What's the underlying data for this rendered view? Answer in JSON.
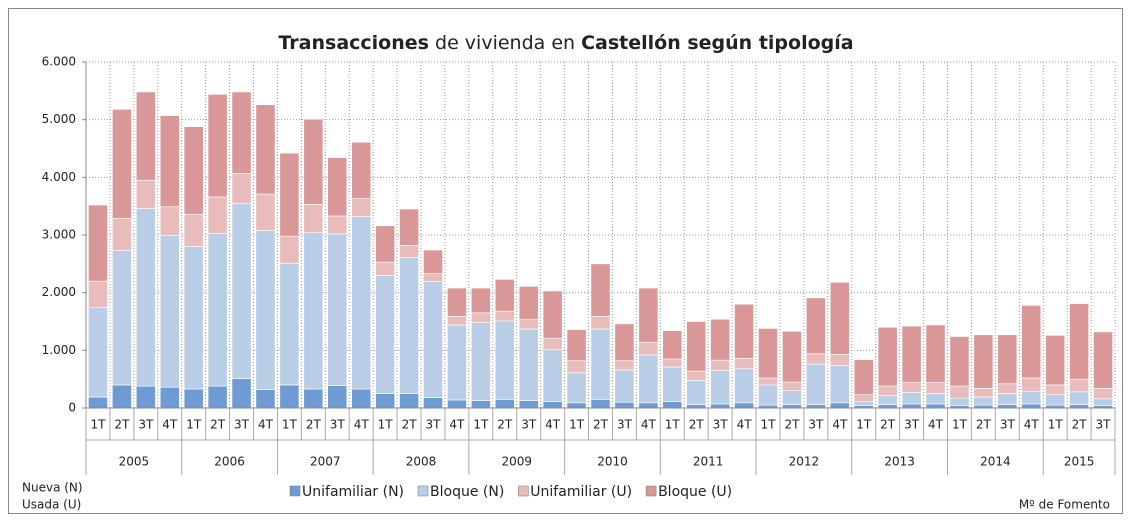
{
  "chart_data": {
    "type": "stacked-bar",
    "title_parts": [
      {
        "text": "Transacciones",
        "bold": true
      },
      {
        "text": " de vivienda en ",
        "bold": false
      },
      {
        "text": "Castellón  según tipología",
        "bold": true
      }
    ],
    "categories": [
      "1T",
      "2T",
      "3T",
      "4T",
      "1T",
      "2T",
      "3T",
      "4T",
      "1T",
      "2T",
      "3T",
      "4T",
      "1T",
      "2T",
      "3T",
      "4T",
      "1T",
      "2T",
      "3T",
      "4T",
      "1T",
      "2T",
      "3T",
      "4T",
      "1T",
      "2T",
      "3T",
      "4T",
      "1T",
      "2T",
      "3T",
      "4T",
      "1T",
      "2T",
      "3T",
      "4T",
      "1T",
      "2T",
      "3T",
      "4T",
      "1T",
      "2T",
      "3T"
    ],
    "year_groups": [
      {
        "label": "2005",
        "span": 4
      },
      {
        "label": "2006",
        "span": 4
      },
      {
        "label": "2007",
        "span": 4
      },
      {
        "label": "2008",
        "span": 4
      },
      {
        "label": "2009",
        "span": 4
      },
      {
        "label": "2010",
        "span": 4
      },
      {
        "label": "2011",
        "span": 4
      },
      {
        "label": "2012",
        "span": 4
      },
      {
        "label": "2013",
        "span": 4
      },
      {
        "label": "2014",
        "span": 4
      },
      {
        "label": "2015",
        "span": 3
      }
    ],
    "series": [
      {
        "name": "Unifamiliar (N)",
        "color": "#6f9bd4",
        "values": [
          190,
          400,
          380,
          360,
          330,
          380,
          510,
          320,
          400,
          330,
          390,
          330,
          250,
          250,
          180,
          140,
          130,
          150,
          130,
          110,
          90,
          150,
          100,
          90,
          110,
          60,
          70,
          90,
          50,
          60,
          60,
          90,
          40,
          60,
          70,
          70,
          40,
          50,
          60,
          70,
          50,
          60,
          40
        ]
      },
      {
        "name": "Bloque (N)",
        "color": "#b9cde6",
        "values": [
          1550,
          2330,
          3080,
          2630,
          2470,
          2650,
          3040,
          2760,
          2110,
          2710,
          2630,
          2990,
          2050,
          2360,
          2010,
          1300,
          1350,
          1360,
          1240,
          900,
          520,
          1220,
          560,
          830,
          600,
          420,
          580,
          590,
          350,
          240,
          700,
          650,
          70,
          160,
          200,
          180,
          130,
          140,
          190,
          220,
          180,
          220,
          120
        ]
      },
      {
        "name": "Unifamiliar (U)",
        "color": "#e8bcbb",
        "values": [
          460,
          560,
          490,
          500,
          560,
          630,
          520,
          630,
          470,
          490,
          310,
          310,
          230,
          210,
          140,
          150,
          170,
          170,
          170,
          200,
          210,
          220,
          160,
          220,
          140,
          160,
          180,
          180,
          120,
          150,
          180,
          190,
          120,
          160,
          170,
          190,
          210,
          150,
          170,
          230,
          170,
          220,
          180
        ]
      },
      {
        "name": "Bloque (U)",
        "color": "#d99897",
        "values": [
          1320,
          1890,
          1530,
          1580,
          1520,
          1780,
          1410,
          1550,
          1440,
          1480,
          1010,
          980,
          630,
          630,
          410,
          490,
          430,
          550,
          570,
          820,
          540,
          910,
          640,
          940,
          490,
          860,
          710,
          940,
          860,
          880,
          970,
          1250,
          610,
          1020,
          980,
          1000,
          860,
          930,
          850,
          1260,
          860,
          1310,
          980
        ]
      }
    ],
    "ylim": [
      0,
      6000
    ],
    "yticks": [
      0,
      {
        "value": 1000,
        "label": "1.000"
      },
      {
        "value": 2000,
        "label": "2.000"
      },
      {
        "value": 3000,
        "label": "3.000"
      },
      {
        "value": 4000,
        "label": "4.000"
      },
      {
        "value": 5000,
        "label": "5.000"
      },
      {
        "value": 6000,
        "label": "6.000"
      }
    ],
    "grid": true,
    "legend_position": "bottom",
    "legend_note": [
      "Nueva (N)",
      "Usada (U)"
    ],
    "source": "Mº de Fomento"
  }
}
